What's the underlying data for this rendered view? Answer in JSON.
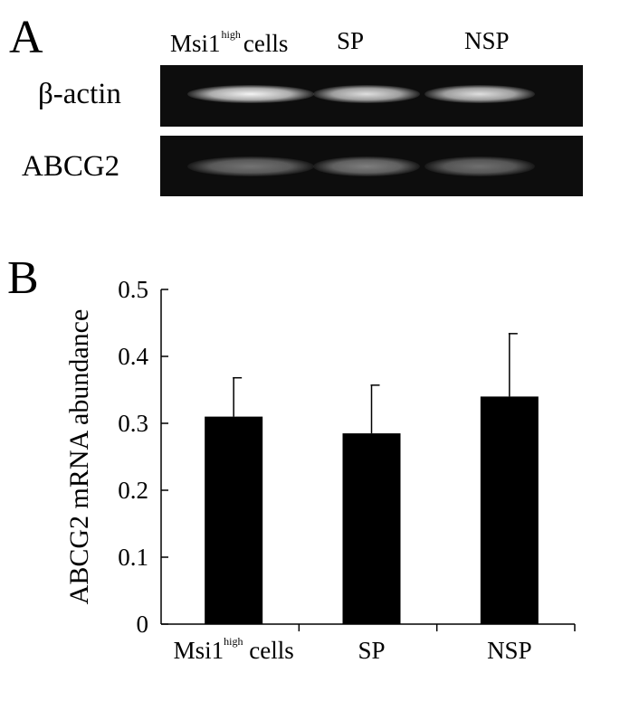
{
  "figure": {
    "panel_a_letter": "A",
    "panel_b_letter": "B"
  },
  "gel": {
    "lanes": [
      {
        "name": "Msi1",
        "superscript": "high",
        "suffix": "cells"
      },
      {
        "name": "SP",
        "superscript": "",
        "suffix": ""
      },
      {
        "name": "NSP",
        "superscript": "",
        "suffix": ""
      }
    ],
    "rows": [
      {
        "label": "β-actin",
        "band_intensity": [
          0.95,
          0.85,
          0.85
        ]
      },
      {
        "label": "ABCG2",
        "band_intensity": [
          0.35,
          0.4,
          0.33
        ]
      }
    ]
  },
  "chart_data": {
    "type": "bar",
    "categories": [
      "Msi1 high cells",
      "SP",
      "NSP"
    ],
    "category_labels": [
      {
        "main": "Msi1",
        "sup": "high",
        "suffix": "cells"
      },
      {
        "main": "SP",
        "sup": "",
        "suffix": ""
      },
      {
        "main": "NSP",
        "sup": "",
        "suffix": ""
      }
    ],
    "values": [
      0.31,
      0.285,
      0.34
    ],
    "error_bars": [
      0.058,
      0.072,
      0.094
    ],
    "ylabel": "ABCG2 mRNA abundance",
    "xlabel": "",
    "ylim": [
      0,
      0.5
    ],
    "yticks": [
      "0",
      "0.1",
      "0.2",
      "0.3",
      "0.4",
      "0.5"
    ],
    "bar_color": "#000000",
    "grid": false
  }
}
